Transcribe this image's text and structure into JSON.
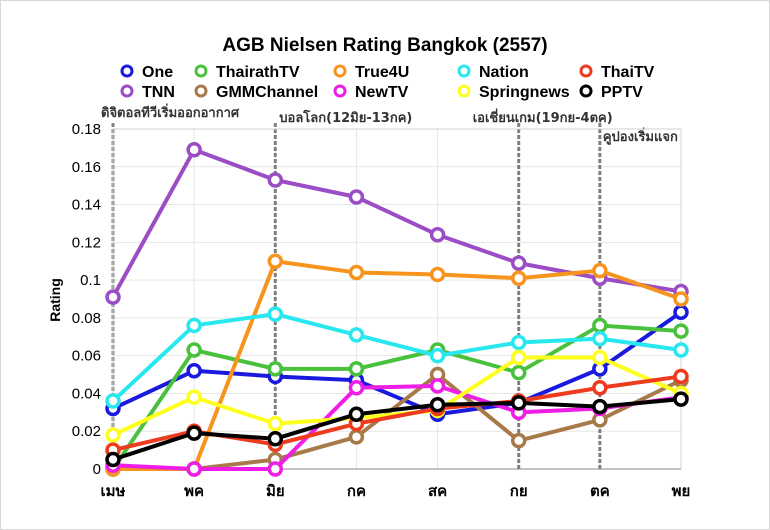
{
  "chart_data": {
    "type": "line",
    "title": "AGB Nielsen Rating Bangkok (2557)",
    "xlabel": "",
    "ylabel": "Rating",
    "categories": [
      "เมษ",
      "พค",
      "มิย",
      "กค",
      "สค",
      "กย",
      "ตค",
      "พย"
    ],
    "ylim": [
      0,
      0.18
    ],
    "yticks": [
      "0",
      "0.02",
      "0.04",
      "0.06",
      "0.08",
      "0.1",
      "0.12",
      "0.14",
      "0.16",
      "0.18"
    ],
    "grid": true,
    "legend_position": "top",
    "annotations": [
      {
        "text": "ดิจิตอลทีวีเริ่มออกอากาศ",
        "category": "เมษ"
      },
      {
        "text": "บอลโลก(12มิย-13กค)",
        "category": "มิย"
      },
      {
        "text": "เอเชี่ยนเกม(19กย-4ตค)",
        "category": "กย"
      },
      {
        "text": "คูปองเริ่มแจก",
        "category": "ตค"
      }
    ],
    "series": [
      {
        "name": "One",
        "color": "#1a1adf",
        "values": [
          0.032,
          0.052,
          0.049,
          0.047,
          0.029,
          0.035,
          0.053,
          0.083
        ]
      },
      {
        "name": "TNN",
        "color": "#9b4dc5",
        "values": [
          0.091,
          0.169,
          0.153,
          0.144,
          0.124,
          0.109,
          0.101,
          0.094
        ]
      },
      {
        "name": "ThairathTV",
        "color": "#49c13c",
        "values": [
          0.0,
          0.063,
          0.053,
          0.053,
          0.063,
          0.051,
          0.076,
          0.073
        ]
      },
      {
        "name": "GMMChannel",
        "color": "#a87a4a",
        "values": [
          0.0,
          0.0,
          0.005,
          0.017,
          0.05,
          0.015,
          0.026,
          0.047
        ]
      },
      {
        "name": "True4U",
        "color": "#f7941d",
        "values": [
          0.0,
          0.0,
          0.11,
          0.104,
          0.103,
          0.101,
          0.105,
          0.09
        ]
      },
      {
        "name": "NewTV",
        "color": "#ee1ee6",
        "values": [
          0.002,
          0.0,
          0.0,
          0.043,
          0.044,
          0.03,
          0.032,
          0.038
        ]
      },
      {
        "name": "Nation",
        "color": "#28e7ee",
        "values": [
          0.036,
          0.076,
          0.082,
          0.071,
          0.06,
          0.067,
          0.069,
          0.063
        ]
      },
      {
        "name": "Springnews",
        "color": "#ffff1e",
        "values": [
          0.018,
          0.038,
          0.024,
          0.027,
          0.031,
          0.059,
          0.059,
          0.04
        ]
      },
      {
        "name": "ThaiTV",
        "color": "#ee3a1e",
        "values": [
          0.01,
          0.02,
          0.013,
          0.024,
          0.032,
          0.036,
          0.043,
          0.049
        ]
      },
      {
        "name": "PPTV",
        "color": "#000000",
        "values": [
          0.005,
          0.019,
          0.016,
          0.029,
          0.034,
          0.035,
          0.033,
          0.037
        ]
      }
    ]
  }
}
